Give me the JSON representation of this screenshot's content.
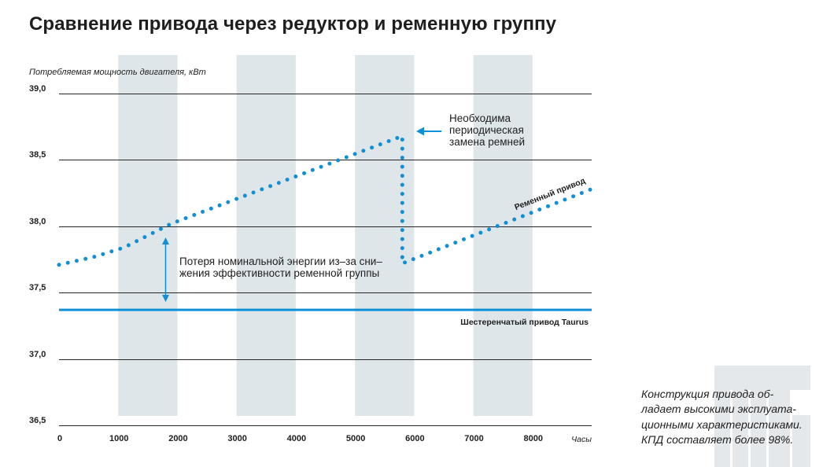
{
  "chart_data": {
    "type": "line",
    "title": "Сравнение привода через редуктор и ременную группу",
    "ylabel": "Потребляемая мощность двигателя, кВт",
    "xlabel": "Часы",
    "xlim": [
      0,
      9000
    ],
    "ylim": [
      36.5,
      39.0
    ],
    "x_ticks": [
      0,
      1000,
      2000,
      3000,
      4000,
      5000,
      6000,
      7000,
      8000
    ],
    "x_tick_labels": [
      "0",
      "1000",
      "2000",
      "3000",
      "4000",
      "5000",
      "6000",
      "7000",
      "8000"
    ],
    "y_ticks": [
      39.0,
      38.5,
      38.0,
      37.5,
      37.0,
      36.5
    ],
    "y_tick_labels": [
      "39,0",
      "38,5",
      "38,0",
      "37,5",
      "37,0",
      "36,5"
    ],
    "grid_horizontal": true,
    "shaded_x_bands": [
      [
        1000,
        2000
      ],
      [
        3000,
        4000
      ],
      [
        5000,
        6000
      ],
      [
        7000,
        8000
      ]
    ],
    "series": [
      {
        "name": "Ременный привод",
        "color": "#0f8fd5",
        "x": [
          0,
          600,
          1100,
          1500,
          1900,
          5800,
          5800,
          9000
        ],
        "y": [
          37.71,
          37.77,
          37.84,
          37.93,
          38.02,
          38.68,
          37.72,
          38.28
        ]
      },
      {
        "name": "Шестеренчатый привод Taurus",
        "color": "#0f8fd5",
        "x": [
          0,
          9000
        ],
        "y": [
          37.37,
          37.37
        ]
      }
    ],
    "annotations": [
      {
        "lines": [
          "Необходима",
          "периодическая",
          "замена ремней"
        ]
      },
      {
        "lines": [
          "Потеря номинальной энергии из–за сни–",
          "жения эффективности ременной группы"
        ]
      }
    ]
  },
  "side_note": {
    "lines": [
      "Конструкция привода об-",
      "ладает высокими эксплуата-",
      "ционными характеристиками.",
      "КПД составляет более 98%."
    ]
  },
  "colors": {
    "accent": "#0f8fd5",
    "band": "#dfe6ea",
    "grid": "#262626",
    "text": "#1e1e1e",
    "logo": "#e4e8eb"
  }
}
